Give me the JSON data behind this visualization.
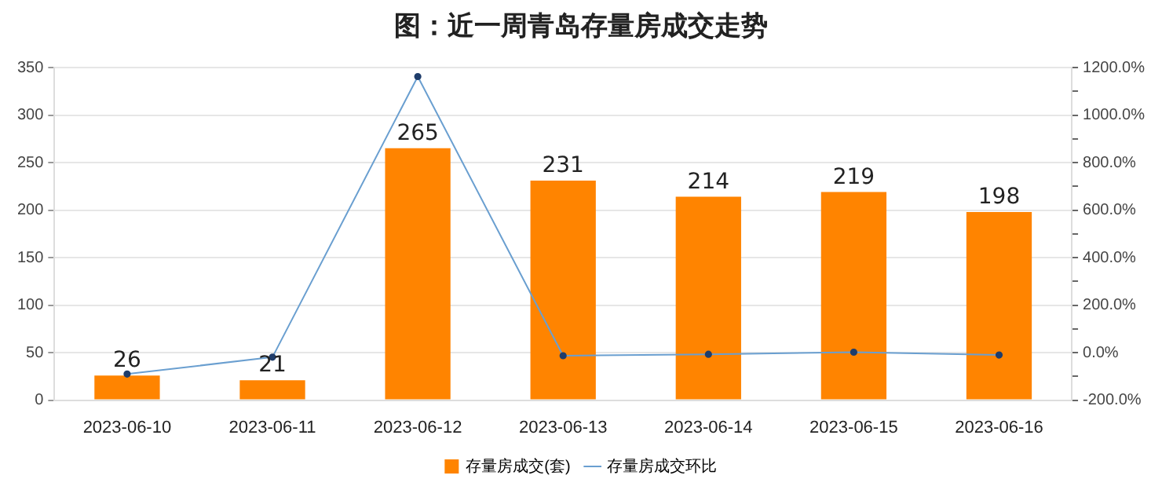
{
  "chart_data": {
    "type": "bar",
    "title": "图：近一周青岛存量房成交走势",
    "categories": [
      "2023-06-10",
      "2023-06-11",
      "2023-06-12",
      "2023-06-13",
      "2023-06-14",
      "2023-06-15",
      "2023-06-16"
    ],
    "series": [
      {
        "name": "存量房成交(套)",
        "color": "#ff8400",
        "values": [
          26,
          21,
          265,
          231,
          214,
          219,
          198
        ],
        "data_labels": true
      },
      {
        "name": "存量房成交环比",
        "type": "line",
        "axis": "y2",
        "color": "#6a9fd0",
        "values": [
          -90,
          -19,
          1162,
          -13,
          -7,
          2,
          -10
        ],
        "marker": "circle"
      }
    ],
    "ylim": [
      0,
      350
    ],
    "yticks": [
      0,
      50,
      100,
      150,
      200,
      250,
      300,
      350
    ],
    "y2lim": [
      -200,
      1200
    ],
    "y2ticks": [
      {
        "value": -200,
        "label": "-200.0%"
      },
      {
        "value": -100,
        "label": null
      },
      {
        "value": 0,
        "label": "0.0%"
      },
      {
        "value": 100,
        "label": null
      },
      {
        "value": 200,
        "label": "200.0%"
      },
      {
        "value": 300,
        "label": null
      },
      {
        "value": 400,
        "label": "400.0%"
      },
      {
        "value": 500,
        "label": null
      },
      {
        "value": 600,
        "label": "600.0%"
      },
      {
        "value": 700,
        "label": null
      },
      {
        "value": 800,
        "label": "800.0%"
      },
      {
        "value": 900,
        "label": null
      },
      {
        "value": 1000,
        "label": "1000.0%"
      },
      {
        "value": 1100,
        "label": null
      },
      {
        "value": 1200,
        "label": "1200.0%"
      }
    ],
    "grid": "y",
    "legend": "bottom"
  }
}
